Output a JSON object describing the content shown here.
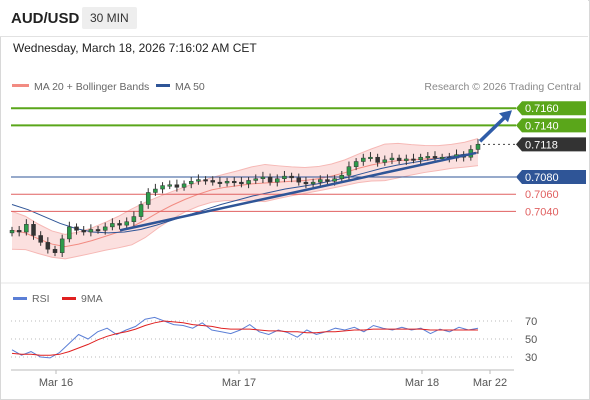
{
  "header": {
    "symbol": "AUD/USD",
    "interval": "30 MIN",
    "timestamp": "Wednesday, March 18, 2026 7:16:02 AM CET"
  },
  "legend": {
    "items": [
      {
        "label": "MA 20 + Bollinger Bands",
        "color": "#f28b82"
      },
      {
        "label": "MA 50",
        "color": "#2f5597"
      }
    ],
    "copyright": "Research © 2026 Trading Central"
  },
  "rsi_legend": {
    "items": [
      {
        "label": "RSI",
        "color": "#5b7fd6"
      },
      {
        "label": "9MA",
        "color": "#e02020"
      }
    ]
  },
  "colors": {
    "green": "#5aa61a",
    "blue": "#2f5597",
    "red": "#e06060",
    "last": "#333333",
    "arrow": "#2f5ca8"
  },
  "chart_data": [
    {
      "type": "candlestick",
      "title": "AUD/USD 30 MIN",
      "ylim": [
        7.0,
        7.19
      ],
      "x_ticks": [
        "Mar 16",
        "Mar 17",
        "Mar 18",
        "Mar 22"
      ],
      "levels": [
        {
          "value": 0.716,
          "label": "0.7160",
          "style": "resistance"
        },
        {
          "value": 0.714,
          "label": "0.7140",
          "style": "resistance"
        },
        {
          "value": 0.7118,
          "label": "0.7118",
          "style": "last"
        },
        {
          "value": 0.708,
          "label": "0.7080",
          "style": "pivot"
        },
        {
          "value": 0.706,
          "label": "0.7060",
          "style": "support"
        },
        {
          "value": 0.704,
          "label": "0.7040",
          "style": "support"
        }
      ],
      "price_series": [
        0.7018,
        0.7016,
        0.7025,
        0.7012,
        0.7004,
        0.6996,
        0.6992,
        0.7008,
        0.7022,
        0.7018,
        0.7016,
        0.7019,
        0.7018,
        0.7022,
        0.7026,
        0.7024,
        0.7028,
        0.7034,
        0.7048,
        0.7062,
        0.7066,
        0.707,
        0.7071,
        0.7068,
        0.7072,
        0.7075,
        0.7077,
        0.7076,
        0.7074,
        0.7073,
        0.7075,
        0.7074,
        0.7072,
        0.7076,
        0.7078,
        0.708,
        0.7074,
        0.7078,
        0.7081,
        0.7079,
        0.7074,
        0.7072,
        0.7074,
        0.7077,
        0.7075,
        0.7078,
        0.7082,
        0.7092,
        0.7098,
        0.7102,
        0.7103,
        0.7097,
        0.71,
        0.7102,
        0.7099,
        0.7101,
        0.71,
        0.7103,
        0.7104,
        0.7102,
        0.7103,
        0.7102,
        0.7106,
        0.7103,
        0.7112,
        0.7118
      ],
      "ma20_series": [
        0.7018,
        0.7015,
        0.7008,
        0.7002,
        0.6999,
        0.7002,
        0.7006,
        0.7011,
        0.7016,
        0.7022,
        0.703,
        0.7039,
        0.7047,
        0.7054,
        0.706,
        0.7065,
        0.7068,
        0.707,
        0.7072,
        0.7073,
        0.7074,
        0.7075,
        0.7076,
        0.7078,
        0.7081,
        0.7085,
        0.709,
        0.7094,
        0.7097,
        0.7099,
        0.71,
        0.7101,
        0.7102,
        0.7104,
        0.7106,
        0.7109
      ],
      "ma50_series": [
        0.7048,
        0.7042,
        0.7034,
        0.7026,
        0.702,
        0.7016,
        0.7015,
        0.7016,
        0.7019,
        0.7024,
        0.703,
        0.7036,
        0.7042,
        0.7048,
        0.7053,
        0.7058,
        0.7062,
        0.7066,
        0.7069,
        0.7072,
        0.7076,
        0.708,
        0.7085,
        0.709,
        0.7094,
        0.7097,
        0.71,
        0.7103,
        0.7106,
        0.7108
      ],
      "trendline": {
        "from": 0.7018,
        "to": 0.7108
      },
      "projection_arrow": {
        "from": 0.7118,
        "to": 0.716
      }
    },
    {
      "type": "line",
      "title": "RSI",
      "ylim": [
        20,
        80
      ],
      "y_ticks": [
        70,
        50,
        30
      ],
      "series": [
        {
          "name": "RSI",
          "values": [
            38,
            32,
            36,
            30,
            29,
            35,
            45,
            55,
            50,
            58,
            62,
            55,
            60,
            64,
            72,
            74,
            70,
            66,
            65,
            62,
            68,
            60,
            58,
            56,
            60,
            66,
            58,
            55,
            60,
            57,
            52,
            60,
            55,
            58,
            62,
            60,
            63,
            58,
            65,
            62,
            60,
            63,
            60,
            62,
            56,
            61,
            58,
            63,
            60,
            62
          ]
        },
        {
          "name": "9MA",
          "values": [
            34,
            33,
            33,
            32,
            32,
            33,
            36,
            40,
            44,
            49,
            53,
            56,
            58,
            61,
            65,
            68,
            70,
            69,
            68,
            66,
            65,
            64,
            62,
            61,
            61,
            61,
            60,
            59,
            59,
            58,
            58,
            57,
            57,
            58,
            58,
            59,
            60,
            60,
            61,
            61,
            61,
            61,
            61,
            61,
            60,
            60,
            60,
            60,
            60,
            60
          ]
        }
      ]
    }
  ]
}
